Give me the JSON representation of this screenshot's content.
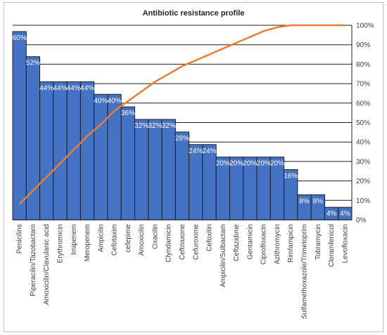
{
  "chart_data": {
    "type": "bar",
    "title": "Antibiotic resistance profile",
    "xlabel": "",
    "ylabel": "",
    "categories": [
      "Penicilins",
      "Piperacilin/Tazobactam",
      "Amoxicilin/Clavulanic acid",
      "Erythromicin",
      "Imipenem",
      "Meropenem",
      "Ampicilin",
      "Cefotaxim",
      "cefepime",
      "Amoxicilin",
      "Oxacilin",
      "Clyndamicin",
      "Ceftriaxone",
      "Cefuroxime",
      "Cefoxitin",
      "Ampicilin/Sulbactam",
      "Ceftazidime",
      "Gentamicin",
      "Ciprofloxacin",
      "Azithromycin",
      "Rimfampicin",
      "Sulfamethoxazole/Trimetoprim",
      "Tobramycin",
      "Cloramfenicol",
      "Levofloxacin"
    ],
    "series": [
      {
        "type": "bar",
        "color": "#4472c4",
        "values": [
          60,
          52,
          44,
          44,
          44,
          44,
          40,
          40,
          36,
          32,
          32,
          32,
          28,
          24,
          24,
          20,
          20,
          20,
          20,
          20,
          16,
          8,
          8,
          4,
          4
        ],
        "data_labels": [
          "60%",
          "52%",
          "44%",
          "44%",
          "44%",
          "44%",
          "40%",
          "40%",
          "36%",
          "32%",
          "32%",
          "32%",
          "28%",
          "24%",
          "24%",
          "20%",
          "20%",
          "20%",
          "20%",
          "20%",
          "16%",
          "8%",
          "8%",
          "4%",
          "4%"
        ]
      },
      {
        "type": "line",
        "color": "#ed7d31",
        "axis": "right",
        "values": [
          8,
          15,
          22,
          29,
          36,
          43,
          49,
          56,
          61,
          66,
          71,
          75,
          79,
          82,
          85,
          88,
          91,
          94,
          97,
          99,
          100,
          100,
          100,
          100,
          100
        ]
      }
    ],
    "y_left": {
      "min": 0,
      "max": 62,
      "gridlines": 10
    },
    "y_right": {
      "min": 0,
      "max": 100,
      "ticks": [
        "0%",
        "10%",
        "20%",
        "30%",
        "40%",
        "50%",
        "60%",
        "70%",
        "80%",
        "90%",
        "100%"
      ]
    },
    "grid": true,
    "legend": "none"
  }
}
